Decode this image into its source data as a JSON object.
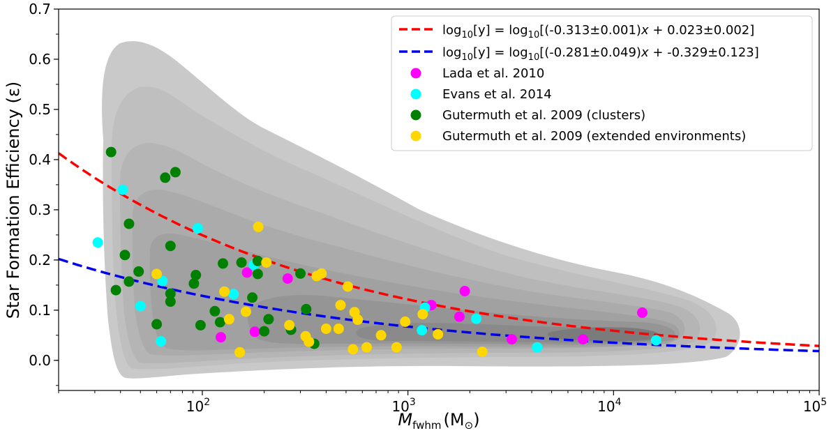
{
  "chart_data": {
    "type": "scatter",
    "title": "",
    "xlabel_main": "M",
    "xlabel_sub": "fwhm",
    "xlabel_unit_open": "(M",
    "xlabel_unit_sub": "⊙",
    "xlabel_unit_close": ")",
    "ylabel": "Star Formation Efficiency (ε)",
    "x_scale": "log",
    "xlim": [
      20,
      100000
    ],
    "ylim": [
      -0.06,
      0.7
    ],
    "grid": false,
    "legend_position": "top-right",
    "x_ticks": [
      {
        "value": 100,
        "base": "10",
        "exp": "2"
      },
      {
        "value": 1000,
        "base": "10",
        "exp": "3"
      },
      {
        "value": 10000,
        "base": "10",
        "exp": "4"
      },
      {
        "value": 100000,
        "base": "10",
        "exp": "5"
      }
    ],
    "y_ticks": [
      "0.0",
      "0.1",
      "0.2",
      "0.3",
      "0.4",
      "0.5",
      "0.6",
      "0.7"
    ],
    "fits": [
      {
        "name_parts": [
          "log",
          "10",
          "[y] = log",
          "10",
          "[(-0.313±0.001)",
          "x",
          " + 0.023±0.002]"
        ],
        "slope": -0.313,
        "intercept": 0.023,
        "color": "#ff0000"
      },
      {
        "name_parts": [
          "log",
          "10",
          "[y] = log",
          "10",
          "[(-0.281±0.049)",
          "x",
          " + -0.329±0.123]"
        ],
        "slope": -0.281,
        "intercept": -0.329,
        "color": "#0000ee"
      }
    ],
    "scatter_series": [
      {
        "name": "Lada et al. 2010",
        "color": "#ff00ff",
        "points": [
          [
            123,
            0.046
          ],
          [
            165,
            0.175
          ],
          [
            180,
            0.057
          ],
          [
            260,
            0.163
          ],
          [
            1300,
            0.11
          ],
          [
            1780,
            0.087
          ],
          [
            1890,
            0.138
          ],
          [
            3200,
            0.042
          ],
          [
            7100,
            0.042
          ],
          [
            13800,
            0.095
          ]
        ]
      },
      {
        "name": "Evans et al. 2014",
        "color": "#00ffff",
        "points": [
          [
            31,
            0.235
          ],
          [
            41,
            0.34
          ],
          [
            50,
            0.108
          ],
          [
            63,
            0.038
          ],
          [
            64,
            0.158
          ],
          [
            95,
            0.263
          ],
          [
            142,
            0.132
          ],
          [
            178,
            0.19
          ],
          [
            1170,
            0.06
          ],
          [
            1210,
            0.105
          ],
          [
            2150,
            0.083
          ],
          [
            4250,
            0.026
          ],
          [
            16100,
            0.04
          ]
        ]
      },
      {
        "name": "Gutermuth et al. 2009 (clusters)",
        "color": "#008000",
        "points": [
          [
            36,
            0.415
          ],
          [
            38,
            0.14
          ],
          [
            42,
            0.21
          ],
          [
            44,
            0.272
          ],
          [
            44,
            0.157
          ],
          [
            49,
            0.177
          ],
          [
            60,
            0.072
          ],
          [
            66,
            0.364
          ],
          [
            70,
            0.228
          ],
          [
            70,
            0.133
          ],
          [
            70,
            0.117
          ],
          [
            74,
            0.375
          ],
          [
            91,
            0.153
          ],
          [
            93,
            0.17
          ],
          [
            98,
            0.07
          ],
          [
            115,
            0.098
          ],
          [
            122,
            0.076
          ],
          [
            126,
            0.193
          ],
          [
            155,
            0.195
          ],
          [
            175,
            0.125
          ],
          [
            186,
            0.198
          ],
          [
            186,
            0.172
          ],
          [
            200,
            0.058
          ],
          [
            210,
            0.082
          ],
          [
            270,
            0.061
          ],
          [
            300,
            0.173
          ],
          [
            320,
            0.102
          ],
          [
            350,
            0.033
          ]
        ]
      },
      {
        "name": "Gutermuth et al. 2009 (extended environments)",
        "color": "#ffd700",
        "points": [
          [
            60,
            0.172
          ],
          [
            128,
            0.137
          ],
          [
            135,
            0.082
          ],
          [
            152,
            0.016
          ],
          [
            163,
            0.097
          ],
          [
            187,
            0.266
          ],
          [
            205,
            0.195
          ],
          [
            265,
            0.07
          ],
          [
            318,
            0.048
          ],
          [
            330,
            0.037
          ],
          [
            360,
            0.168
          ],
          [
            380,
            0.173
          ],
          [
            400,
            0.063
          ],
          [
            460,
            0.063
          ],
          [
            470,
            0.11
          ],
          [
            510,
            0.147
          ],
          [
            540,
            0.022
          ],
          [
            550,
            0.096
          ],
          [
            570,
            0.081
          ],
          [
            630,
            0.026
          ],
          [
            740,
            0.05
          ],
          [
            880,
            0.026
          ],
          [
            970,
            0.077
          ],
          [
            1180,
            0.092
          ],
          [
            1400,
            0.052
          ],
          [
            2300,
            0.017
          ]
        ]
      }
    ],
    "density_contours": {
      "description_levels": 8,
      "fill_colors": [
        "#c8c8c8",
        "#bebebe",
        "#b4b4b4",
        "#aaaaaa",
        "#a1a1a1",
        "#979797",
        "#8b8b8b",
        "#7a7a7a"
      ]
    }
  }
}
